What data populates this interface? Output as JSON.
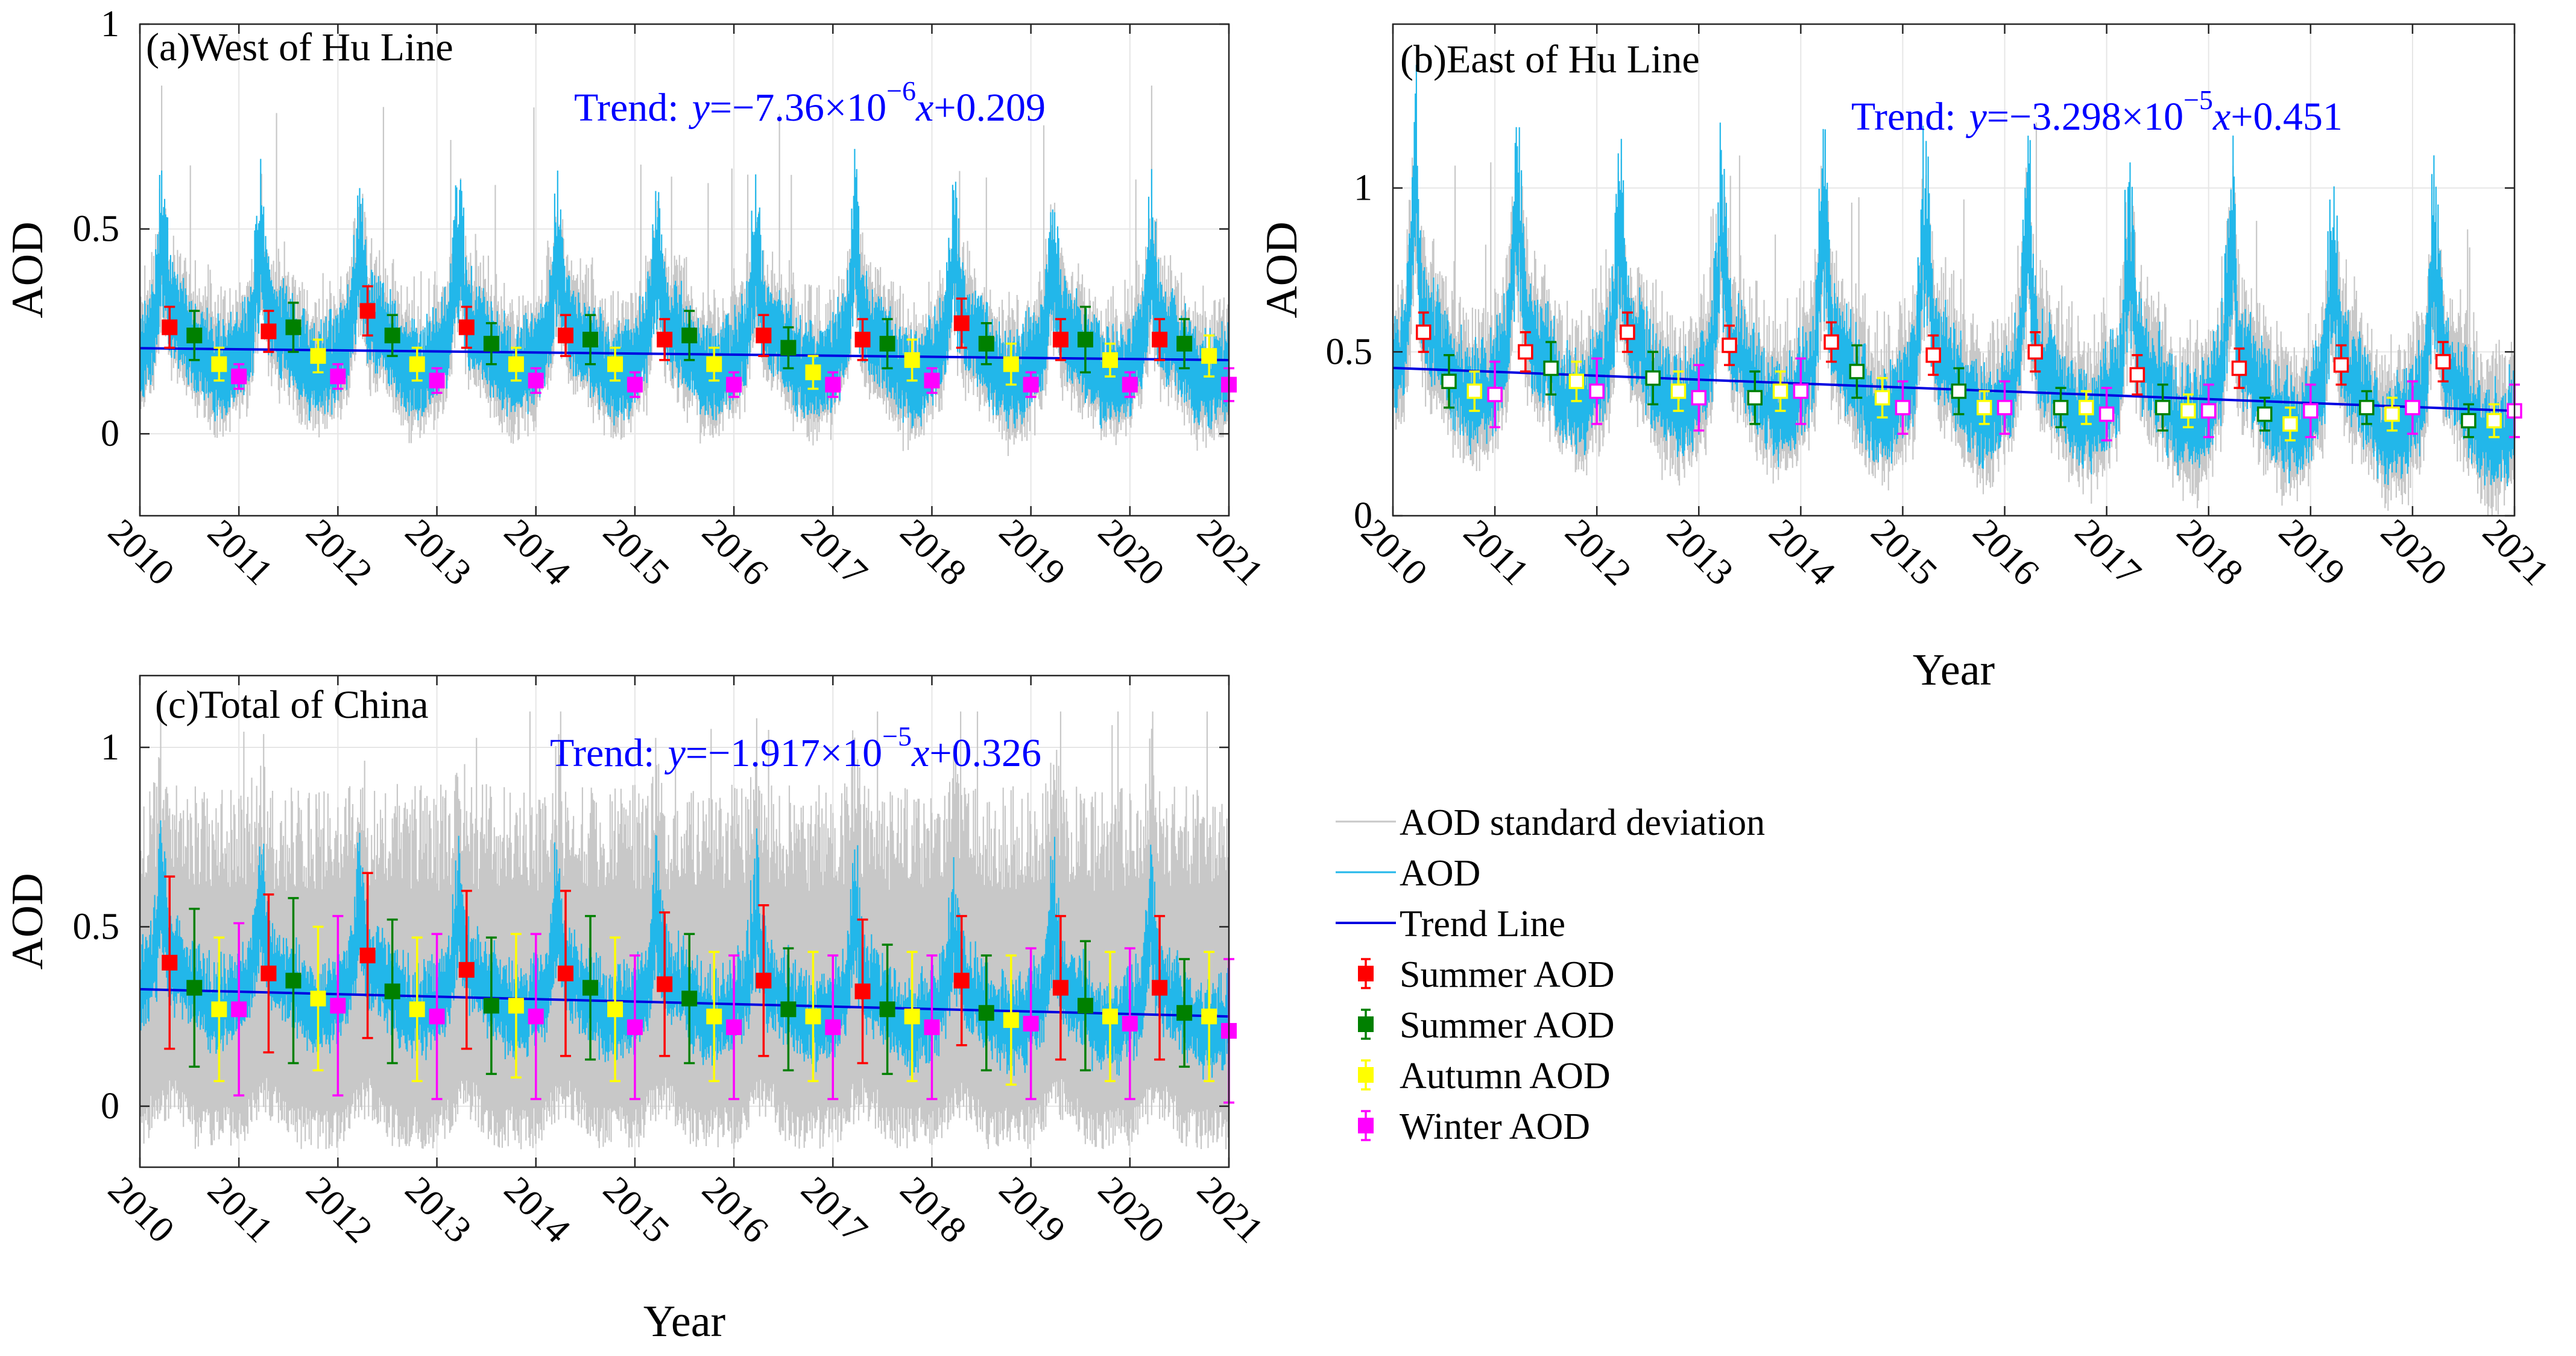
{
  "chart_data": [
    {
      "type": "line",
      "panel_id": "a",
      "title": "(a)West of Hu Line",
      "xlabel": "",
      "ylabel": "AOD",
      "xlim": [
        2010,
        2021
      ],
      "ylim": [
        -0.2,
        1.0
      ],
      "x_ticks": [
        2010,
        2011,
        2012,
        2013,
        2014,
        2015,
        2016,
        2017,
        2018,
        2019,
        2020,
        2021
      ],
      "y_ticks": [
        0,
        0.5,
        1
      ],
      "y_tick_labels": [
        "0",
        "0.5",
        "1"
      ],
      "grid": true,
      "marker_fill": "filled",
      "trend": {
        "label": "Trend:",
        "text_y": "y",
        "text_eq": "=−7.36×10",
        "text_exp": "−6",
        "text_x": "x",
        "text_const": "+0.209",
        "start": 0.209,
        "end": 0.18
      },
      "aod_series": {
        "base": 0.195,
        "amp": 0.11,
        "summer_peak_boost": 0.15,
        "noise": 0.05,
        "sd_low": 0.1,
        "sd_high": 0.5,
        "outlier_max": 0.85
      },
      "seasonal": [
        {
          "season": "Summer",
          "color": "#ff0000",
          "x": [
            2010.3,
            2011.3,
            2012.3,
            2013.3,
            2014.3,
            2015.3,
            2016.3,
            2017.3,
            2018.3,
            2019.3,
            2020.3
          ],
          "y": [
            0.26,
            0.25,
            0.3,
            0.26,
            0.24,
            0.23,
            0.24,
            0.23,
            0.27,
            0.23,
            0.23
          ],
          "err": [
            0.05,
            0.05,
            0.06,
            0.05,
            0.05,
            0.05,
            0.05,
            0.05,
            0.06,
            0.05,
            0.05
          ]
        },
        {
          "season": "Summer",
          "color": "#008000",
          "x": [
            2010.55,
            2011.55,
            2012.55,
            2013.55,
            2014.55,
            2015.55,
            2016.55,
            2017.55,
            2018.55,
            2019.55,
            2020.55
          ],
          "y": [
            0.24,
            0.26,
            0.24,
            0.22,
            0.23,
            0.24,
            0.21,
            0.22,
            0.22,
            0.23,
            0.22
          ],
          "err": [
            0.06,
            0.06,
            0.05,
            0.05,
            0.06,
            0.06,
            0.05,
            0.06,
            0.05,
            0.08,
            0.06
          ]
        },
        {
          "season": "Autumn",
          "color": "#ffff00",
          "x": [
            2010.8,
            2011.8,
            2012.8,
            2013.8,
            2014.8,
            2015.8,
            2016.8,
            2017.8,
            2018.8,
            2019.8,
            2020.8
          ],
          "y": [
            0.17,
            0.19,
            0.17,
            0.17,
            0.17,
            0.17,
            0.15,
            0.18,
            0.17,
            0.18,
            0.19
          ],
          "err": [
            0.04,
            0.04,
            0.04,
            0.04,
            0.04,
            0.04,
            0.04,
            0.05,
            0.05,
            0.04,
            0.05
          ]
        },
        {
          "season": "Winter",
          "color": "#ff00ff",
          "x": [
            2011.0,
            2012.0,
            2013.0,
            2014.0,
            2015.0,
            2016.0,
            2017.0,
            2018.0,
            2019.0,
            2020.0,
            2021.0
          ],
          "y": [
            0.14,
            0.14,
            0.13,
            0.13,
            0.12,
            0.12,
            0.12,
            0.13,
            0.12,
            0.12,
            0.12
          ],
          "err": [
            0.03,
            0.03,
            0.03,
            0.03,
            0.03,
            0.03,
            0.03,
            0.03,
            0.03,
            0.03,
            0.04
          ]
        }
      ]
    },
    {
      "type": "line",
      "panel_id": "b",
      "title": "(b)East of Hu Line",
      "xlabel": "Year",
      "ylabel": "AOD",
      "xlim": [
        2010,
        2021
      ],
      "ylim": [
        0,
        1.5
      ],
      "x_ticks": [
        2010,
        2011,
        2012,
        2013,
        2014,
        2015,
        2016,
        2017,
        2018,
        2019,
        2020,
        2021
      ],
      "y_ticks": [
        0,
        0.5,
        1
      ],
      "y_tick_labels": [
        "0",
        "0.5",
        "1"
      ],
      "grid": true,
      "marker_fill": "open",
      "trend": {
        "label": "Trend:",
        "text_y": "y",
        "text_eq": "=−3.298×10",
        "text_exp": "−5",
        "text_x": "x",
        "text_const": "+0.451",
        "start": 0.451,
        "end": 0.32
      },
      "aod_series": {
        "base": 0.42,
        "amp": 0.18,
        "summer_peak_boost": 0.3,
        "noise": 0.08,
        "sd_low": 0.15,
        "sd_high": 0.75,
        "outlier_max": 1.2
      },
      "seasonal": [
        {
          "season": "Summer",
          "color": "#ff0000",
          "x": [
            2010.3,
            2011.3,
            2012.3,
            2013.3,
            2014.3,
            2015.3,
            2016.3,
            2017.3,
            2018.3,
            2019.3,
            2020.3
          ],
          "y": [
            0.56,
            0.5,
            0.56,
            0.52,
            0.53,
            0.49,
            0.5,
            0.43,
            0.45,
            0.46,
            0.47
          ],
          "err": [
            0.06,
            0.06,
            0.06,
            0.06,
            0.06,
            0.06,
            0.06,
            0.06,
            0.06,
            0.06,
            0.06
          ]
        },
        {
          "season": "Summer",
          "color": "#008000",
          "x": [
            2010.55,
            2011.55,
            2012.55,
            2013.55,
            2014.55,
            2015.55,
            2016.55,
            2017.55,
            2018.55,
            2019.55,
            2020.55
          ],
          "y": [
            0.41,
            0.45,
            0.42,
            0.36,
            0.44,
            0.38,
            0.33,
            0.33,
            0.31,
            0.33,
            0.29
          ],
          "err": [
            0.08,
            0.08,
            0.08,
            0.08,
            0.08,
            0.07,
            0.06,
            0.07,
            0.05,
            0.05,
            0.05
          ]
        },
        {
          "season": "Autumn",
          "color": "#ffff00",
          "x": [
            2010.8,
            2011.8,
            2012.8,
            2013.8,
            2014.8,
            2015.8,
            2016.8,
            2017.8,
            2018.8,
            2019.8,
            2020.8
          ],
          "y": [
            0.38,
            0.41,
            0.38,
            0.38,
            0.36,
            0.33,
            0.33,
            0.32,
            0.28,
            0.31,
            0.29
          ],
          "err": [
            0.06,
            0.06,
            0.06,
            0.06,
            0.06,
            0.05,
            0.05,
            0.05,
            0.05,
            0.05,
            0.05
          ]
        },
        {
          "season": "Winter",
          "color": "#ff00ff",
          "x": [
            2011.0,
            2012.0,
            2013.0,
            2014.0,
            2015.0,
            2016.0,
            2017.0,
            2018.0,
            2019.0,
            2020.0,
            2021.0
          ],
          "y": [
            0.37,
            0.38,
            0.36,
            0.38,
            0.33,
            0.33,
            0.31,
            0.32,
            0.32,
            0.33,
            0.32
          ],
          "err": [
            0.1,
            0.1,
            0.1,
            0.1,
            0.08,
            0.08,
            0.08,
            0.08,
            0.08,
            0.08,
            0.08
          ]
        }
      ]
    },
    {
      "type": "line",
      "panel_id": "c",
      "title": "(c)Total of China",
      "xlabel": "Year",
      "ylabel": "AOD",
      "xlim": [
        2010,
        2021
      ],
      "ylim": [
        -0.17,
        1.2
      ],
      "x_ticks": [
        2010,
        2011,
        2012,
        2013,
        2014,
        2015,
        2016,
        2017,
        2018,
        2019,
        2020,
        2021
      ],
      "y_ticks": [
        0,
        0.5,
        1
      ],
      "y_tick_labels": [
        "0",
        "0.5",
        "1"
      ],
      "grid": true,
      "marker_fill": "filled",
      "trend": {
        "label": "Trend:",
        "text_y": "y",
        "text_eq": "=−1.917×10",
        "text_exp": "−5",
        "text_x": "x",
        "text_const": "+0.326",
        "start": 0.326,
        "end": 0.25
      },
      "aod_series": {
        "base": 0.29,
        "amp": 0.1,
        "summer_peak_boost": 0.15,
        "noise": 0.06,
        "sd_low": -0.12,
        "sd_high": 0.95,
        "outlier_max": 1.1
      },
      "seasonal": [
        {
          "season": "Summer",
          "color": "#ff0000",
          "x": [
            2010.3,
            2011.3,
            2012.3,
            2013.3,
            2014.3,
            2015.3,
            2016.3,
            2017.3,
            2018.3,
            2019.3,
            2020.3
          ],
          "y": [
            0.4,
            0.37,
            0.42,
            0.38,
            0.37,
            0.34,
            0.35,
            0.32,
            0.35,
            0.33,
            0.33
          ],
          "err": [
            0.24,
            0.22,
            0.23,
            0.22,
            0.23,
            0.2,
            0.21,
            0.2,
            0.18,
            0.2,
            0.2
          ]
        },
        {
          "season": "Summer",
          "color": "#008000",
          "x": [
            2010.55,
            2011.55,
            2012.55,
            2013.55,
            2014.55,
            2015.55,
            2016.55,
            2017.55,
            2018.55,
            2019.55,
            2020.55
          ],
          "y": [
            0.33,
            0.35,
            0.32,
            0.28,
            0.33,
            0.3,
            0.27,
            0.27,
            0.26,
            0.28,
            0.26
          ],
          "err": [
            0.22,
            0.23,
            0.2,
            0.19,
            0.2,
            0.18,
            0.17,
            0.18,
            0.16,
            0.18,
            0.15
          ]
        },
        {
          "season": "Autumn",
          "color": "#ffff00",
          "x": [
            2010.8,
            2011.8,
            2012.8,
            2013.8,
            2014.8,
            2015.8,
            2016.8,
            2017.8,
            2018.8,
            2019.8,
            2020.8
          ],
          "y": [
            0.27,
            0.3,
            0.27,
            0.28,
            0.27,
            0.25,
            0.25,
            0.25,
            0.24,
            0.25,
            0.25
          ],
          "err": [
            0.2,
            0.2,
            0.2,
            0.2,
            0.2,
            0.18,
            0.18,
            0.18,
            0.18,
            0.18,
            0.18
          ]
        },
        {
          "season": "Winter",
          "color": "#ff00ff",
          "x": [
            2011.0,
            2012.0,
            2013.0,
            2014.0,
            2015.0,
            2016.0,
            2017.0,
            2018.0,
            2019.0,
            2020.0,
            2021.0
          ],
          "y": [
            0.27,
            0.28,
            0.25,
            0.25,
            0.22,
            0.22,
            0.22,
            0.22,
            0.23,
            0.23,
            0.21
          ],
          "err": [
            0.24,
            0.25,
            0.23,
            0.23,
            0.2,
            0.2,
            0.2,
            0.2,
            0.21,
            0.21,
            0.2
          ]
        }
      ]
    }
  ],
  "legend": {
    "placement": "right of panel (c)",
    "items": [
      {
        "label": "AOD standard deviation",
        "kind": "line",
        "color": "#c8c8c8"
      },
      {
        "label": "AOD",
        "kind": "line",
        "color": "#22b7ea"
      },
      {
        "label": "Trend Line",
        "kind": "line",
        "color": "#0000e0"
      },
      {
        "label": "Summer AOD",
        "kind": "marker",
        "color": "#ff0000"
      },
      {
        "label": "Summer AOD",
        "kind": "marker",
        "color": "#008000"
      },
      {
        "label": "Autumn AOD",
        "kind": "marker",
        "color": "#ffff00"
      },
      {
        "label": "Winter AOD",
        "kind": "marker",
        "color": "#ff00ff"
      }
    ]
  },
  "colors": {
    "sd": "#c8c8c8",
    "aod": "#22b7ea",
    "trend": "#0000e0",
    "trend_text": "#0000ff",
    "grid": "#e6e6e6",
    "axis": "#262626"
  }
}
